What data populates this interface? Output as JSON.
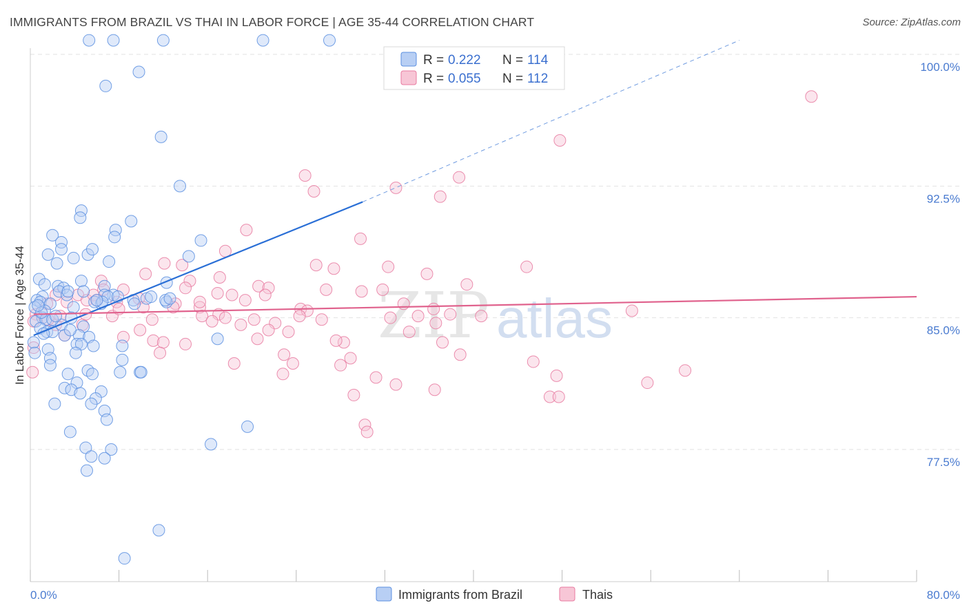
{
  "header": {
    "title": "IMMIGRANTS FROM BRAZIL VS THAI IN LABOR FORCE | AGE 35-44 CORRELATION CHART",
    "source": "Source: ZipAtlas.com"
  },
  "watermark": {
    "part1": "ZIP",
    "part2": "atlas"
  },
  "colors": {
    "brazil": "#5b8fe0",
    "thai": "#e87aa0",
    "brazil_fill": "#b8cff4",
    "thai_fill": "#f7c6d6"
  },
  "chart_data": {
    "type": "scatter",
    "title": "IMMIGRANTS FROM BRAZIL VS THAI IN LABOR FORCE | AGE 35-44 CORRELATION CHART",
    "xlabel": "",
    "ylabel": "In Labor Force | Age 35-44",
    "xlim": [
      0,
      80
    ],
    "ylim": [
      71,
      101.2
    ],
    "x_tick_labels": {
      "left": "0.0%",
      "right": "80.0%"
    },
    "y_ticks": [
      {
        "value": 100,
        "label": "100.0%"
      },
      {
        "value": 92.5,
        "label": "92.5%"
      },
      {
        "value": 85,
        "label": "85.0%"
      },
      {
        "value": 77.5,
        "label": "77.5%"
      }
    ],
    "legend": {
      "r_label": "R =",
      "n_label": "N =",
      "entries": [
        {
          "name": "Immigrants from Brazil",
          "r": "0.222",
          "n": "114"
        },
        {
          "name": "Thais",
          "r": "0.055",
          "n": "112"
        }
      ]
    },
    "series": [
      {
        "name": "Immigrants from Brazil",
        "trend": {
          "x0": 0.3,
          "y0": 84.0,
          "x1": 30,
          "y1": 91.6,
          "dash_to_x": 64,
          "dash_to_y": 100.8
        },
        "points": [
          [
            5.3,
            100.8
          ],
          [
            7.5,
            100.8
          ],
          [
            12.0,
            100.8
          ],
          [
            21.0,
            100.8
          ],
          [
            27.0,
            100.8
          ],
          [
            9.8,
            99.0
          ],
          [
            6.8,
            98.2
          ],
          [
            11.8,
            95.3
          ],
          [
            13.5,
            92.5
          ],
          [
            4.6,
            91.1
          ],
          [
            4.5,
            90.7
          ],
          [
            9.1,
            90.5
          ],
          [
            7.7,
            90.0
          ],
          [
            7.6,
            89.6
          ],
          [
            2.0,
            89.7
          ],
          [
            2.8,
            89.3
          ],
          [
            15.4,
            89.4
          ],
          [
            2.8,
            88.9
          ],
          [
            5.2,
            88.6
          ],
          [
            1.6,
            88.6
          ],
          [
            5.6,
            88.9
          ],
          [
            3.9,
            88.4
          ],
          [
            7.1,
            88.2
          ],
          [
            2.4,
            88.1
          ],
          [
            14.3,
            88.5
          ],
          [
            0.8,
            87.2
          ],
          [
            12.3,
            87.0
          ],
          [
            4.6,
            87.1
          ],
          [
            1.3,
            86.9
          ],
          [
            2.5,
            86.8
          ],
          [
            3.0,
            86.7
          ],
          [
            2.6,
            86.5
          ],
          [
            6.7,
            86.8
          ],
          [
            3.3,
            86.3
          ],
          [
            7.5,
            86.3
          ],
          [
            1.1,
            86.2
          ],
          [
            0.6,
            86.0
          ],
          [
            0.9,
            85.9
          ],
          [
            1.8,
            85.8
          ],
          [
            3.9,
            85.6
          ],
          [
            6.4,
            85.8
          ],
          [
            10.5,
            86.1
          ],
          [
            10.9,
            86.2
          ],
          [
            12.3,
            85.9
          ],
          [
            6.7,
            86.3
          ],
          [
            7.0,
            86.2
          ],
          [
            0.4,
            85.6
          ],
          [
            1.3,
            85.4
          ],
          [
            5.8,
            85.9
          ],
          [
            3.7,
            85.0
          ],
          [
            1.1,
            85.0
          ],
          [
            0.5,
            84.8
          ],
          [
            1.4,
            84.9
          ],
          [
            2.8,
            84.6
          ],
          [
            4.8,
            84.5
          ],
          [
            0.9,
            84.4
          ],
          [
            1.5,
            84.2
          ],
          [
            2.0,
            84.2
          ],
          [
            3.1,
            84.0
          ],
          [
            4.4,
            84.0
          ],
          [
            5.3,
            83.9
          ],
          [
            16.9,
            83.8
          ],
          [
            4.2,
            83.5
          ],
          [
            4.6,
            83.5
          ],
          [
            0.3,
            83.6
          ],
          [
            1.6,
            83.2
          ],
          [
            5.7,
            83.4
          ],
          [
            8.3,
            83.4
          ],
          [
            4.1,
            83.0
          ],
          [
            1.8,
            82.7
          ],
          [
            8.3,
            82.6
          ],
          [
            1.8,
            82.3
          ],
          [
            5.2,
            82.0
          ],
          [
            3.4,
            81.8
          ],
          [
            5.6,
            81.8
          ],
          [
            8.1,
            81.9
          ],
          [
            9.9,
            81.9
          ],
          [
            10.0,
            81.9
          ],
          [
            4.2,
            81.3
          ],
          [
            3.1,
            81.0
          ],
          [
            3.7,
            80.9
          ],
          [
            6.4,
            80.8
          ],
          [
            4.5,
            80.7
          ],
          [
            5.9,
            80.4
          ],
          [
            2.2,
            80.1
          ],
          [
            5.5,
            80.1
          ],
          [
            6.7,
            79.7
          ],
          [
            6.9,
            79.2
          ],
          [
            19.6,
            78.8
          ],
          [
            3.6,
            78.5
          ],
          [
            16.3,
            77.8
          ],
          [
            5.0,
            77.6
          ],
          [
            7.3,
            77.5
          ],
          [
            5.5,
            77.1
          ],
          [
            6.7,
            77.0
          ],
          [
            5.1,
            76.3
          ],
          [
            11.6,
            72.9
          ],
          [
            8.5,
            71.3
          ],
          [
            2.0,
            84.9
          ],
          [
            1.0,
            85.3
          ],
          [
            3.4,
            86.5
          ],
          [
            7.9,
            86.2
          ],
          [
            12.2,
            86.0
          ],
          [
            9.3,
            86.0
          ],
          [
            6.5,
            85.9
          ],
          [
            0.7,
            85.7
          ],
          [
            1.2,
            84.1
          ],
          [
            4.8,
            86.5
          ],
          [
            2.3,
            85.1
          ],
          [
            3.6,
            84.3
          ],
          [
            9.4,
            85.8
          ],
          [
            12.6,
            86.1
          ],
          [
            6.0,
            86.0
          ],
          [
            0.4,
            83.0
          ]
        ]
      },
      {
        "name": "Thais",
        "trend": {
          "x0": 0.3,
          "y0": 85.2,
          "x1": 80,
          "y1": 86.2
        },
        "points": [
          [
            70.5,
            97.6
          ],
          [
            47.8,
            95.1
          ],
          [
            24.8,
            93.1
          ],
          [
            25.6,
            92.2
          ],
          [
            33.0,
            92.4
          ],
          [
            38.7,
            93.0
          ],
          [
            37.0,
            91.9
          ],
          [
            29.8,
            89.5
          ],
          [
            19.5,
            90.0
          ],
          [
            17.6,
            88.8
          ],
          [
            12.1,
            88.1
          ],
          [
            13.7,
            88.0
          ],
          [
            25.8,
            88.0
          ],
          [
            27.4,
            87.8
          ],
          [
            32.3,
            87.9
          ],
          [
            44.8,
            87.9
          ],
          [
            10.4,
            87.5
          ],
          [
            17.1,
            87.3
          ],
          [
            14.4,
            87.1
          ],
          [
            6.4,
            87.1
          ],
          [
            14.0,
            86.7
          ],
          [
            20.6,
            86.8
          ],
          [
            21.5,
            86.7
          ],
          [
            16.9,
            86.4
          ],
          [
            29.9,
            86.5
          ],
          [
            31.8,
            86.6
          ],
          [
            39.4,
            86.9
          ],
          [
            26.7,
            86.6
          ],
          [
            21.2,
            86.3
          ],
          [
            6.6,
            86.6
          ],
          [
            2.3,
            86.3
          ],
          [
            4.3,
            86.3
          ],
          [
            8.4,
            86.6
          ],
          [
            5.1,
            86.0
          ],
          [
            5.7,
            86.3
          ],
          [
            9.8,
            86.1
          ],
          [
            13.1,
            85.8
          ],
          [
            10.2,
            85.6
          ],
          [
            17.0,
            85.2
          ],
          [
            19.4,
            86.0
          ],
          [
            24.4,
            85.5
          ],
          [
            25.0,
            85.4
          ],
          [
            36.4,
            85.5
          ],
          [
            54.3,
            85.4
          ],
          [
            12.9,
            85.6
          ],
          [
            15.3,
            85.6
          ],
          [
            15.5,
            85.1
          ],
          [
            17.6,
            85.0
          ],
          [
            7.4,
            85.1
          ],
          [
            32.5,
            85.0
          ],
          [
            35.0,
            85.1
          ],
          [
            24.3,
            85.1
          ],
          [
            20.2,
            84.9
          ],
          [
            22.1,
            84.7
          ],
          [
            16.4,
            84.8
          ],
          [
            11.0,
            84.9
          ],
          [
            36.6,
            84.7
          ],
          [
            2.3,
            84.6
          ],
          [
            23.3,
            84.2
          ],
          [
            21.5,
            84.3
          ],
          [
            34.2,
            84.2
          ],
          [
            3.1,
            84.0
          ],
          [
            8.4,
            83.9
          ],
          [
            11.1,
            83.7
          ],
          [
            20.5,
            83.8
          ],
          [
            28.3,
            83.6
          ],
          [
            27.6,
            83.7
          ],
          [
            37.2,
            83.6
          ],
          [
            12.0,
            83.6
          ],
          [
            14.0,
            83.5
          ],
          [
            11.7,
            83.0
          ],
          [
            22.9,
            82.9
          ],
          [
            38.8,
            82.9
          ],
          [
            28.9,
            82.7
          ],
          [
            23.7,
            82.4
          ],
          [
            18.4,
            82.4
          ],
          [
            28.0,
            82.3
          ],
          [
            45.4,
            82.5
          ],
          [
            59.1,
            82.0
          ],
          [
            22.8,
            81.8
          ],
          [
            31.2,
            81.6
          ],
          [
            33.0,
            81.2
          ],
          [
            47.5,
            81.7
          ],
          [
            55.7,
            81.3
          ],
          [
            36.5,
            80.9
          ],
          [
            29.2,
            80.6
          ],
          [
            46.9,
            80.5
          ],
          [
            47.7,
            80.5
          ],
          [
            30.2,
            78.9
          ],
          [
            30.4,
            78.5
          ],
          [
            1.5,
            85.8
          ],
          [
            3.3,
            85.9
          ],
          [
            6.0,
            86.0
          ],
          [
            7.8,
            85.9
          ],
          [
            0.5,
            85.2
          ],
          [
            1.6,
            84.9
          ],
          [
            4.7,
            84.6
          ],
          [
            9.9,
            84.3
          ],
          [
            15.3,
            85.9
          ],
          [
            19.0,
            84.6
          ],
          [
            26.3,
            84.9
          ],
          [
            37.9,
            85.2
          ],
          [
            40.7,
            85.1
          ],
          [
            2.7,
            85.1
          ],
          [
            5.0,
            85.2
          ],
          [
            33.7,
            85.8
          ],
          [
            0.3,
            83.3
          ],
          [
            0.2,
            81.9
          ],
          [
            0.3,
            84.8
          ],
          [
            8.0,
            85.5
          ],
          [
            18.2,
            86.3
          ],
          [
            35.8,
            87.5
          ]
        ]
      }
    ]
  }
}
